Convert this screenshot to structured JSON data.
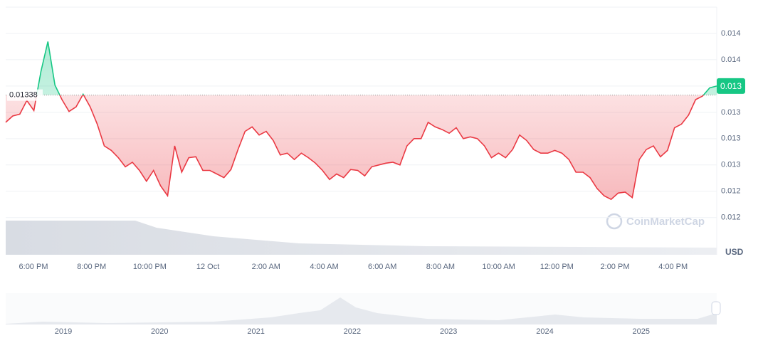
{
  "chart_data": {
    "type": "line",
    "currency": "USD",
    "watermark": "CoinMarketCap",
    "baseline": 0.01338,
    "baseline_label": "0.01338",
    "last_value_label": "0.013",
    "up_color": "#16c784",
    "down_color": "#ea3943",
    "ylim": [
      0.01162,
      0.01435
    ],
    "yticks": [
      {
        "value": 0.01406,
        "label": "0.014"
      },
      {
        "value": 0.01377,
        "label": "0.014"
      },
      {
        "value": 0.01348,
        "label": "0.013"
      },
      {
        "value": 0.01319,
        "label": "0.013"
      },
      {
        "value": 0.0129,
        "label": "0.013"
      },
      {
        "value": 0.01261,
        "label": "0.013"
      },
      {
        "value": 0.01232,
        "label": "0.012"
      },
      {
        "value": 0.01203,
        "label": "0.012"
      }
    ],
    "time_labels": [
      "6:00 PM",
      "8:00 PM",
      "10:00 PM",
      "12 Oct",
      "2:00 AM",
      "4:00 AM",
      "6:00 AM",
      "8:00 AM",
      "10:00 AM",
      "12:00 PM",
      "2:00 PM",
      "4:00 PM"
    ],
    "navigator_labels": [
      "2019",
      "2020",
      "2021",
      "2022",
      "2023",
      "2024",
      "2025"
    ],
    "values": [
      0.01308,
      0.01315,
      0.01317,
      0.01332,
      0.01321,
      0.01364,
      0.01397,
      0.01349,
      0.01333,
      0.0132,
      0.01325,
      0.01339,
      0.01325,
      0.01306,
      0.01282,
      0.01277,
      0.01269,
      0.01259,
      0.01264,
      0.01255,
      0.01243,
      0.01255,
      0.01238,
      0.01227,
      0.01282,
      0.01253,
      0.01269,
      0.0127,
      0.01255,
      0.01255,
      0.01251,
      0.01247,
      0.01256,
      0.01278,
      0.01298,
      0.01303,
      0.01294,
      0.01298,
      0.01288,
      0.01272,
      0.01274,
      0.01267,
      0.01274,
      0.01269,
      0.01263,
      0.01255,
      0.01245,
      0.01251,
      0.01247,
      0.01256,
      0.01255,
      0.01249,
      0.01259,
      0.01261,
      0.01263,
      0.01264,
      0.01261,
      0.01282,
      0.0129,
      0.0129,
      0.01308,
      0.01303,
      0.013,
      0.01296,
      0.01302,
      0.0129,
      0.01292,
      0.0129,
      0.01282,
      0.01269,
      0.01274,
      0.01269,
      0.01278,
      0.01294,
      0.01288,
      0.01278,
      0.01274,
      0.01274,
      0.01277,
      0.01274,
      0.01267,
      0.01253,
      0.01253,
      0.01247,
      0.01235,
      0.01227,
      0.01223,
      0.0123,
      0.01231,
      0.01225,
      0.01267,
      0.01278,
      0.01282,
      0.0127,
      0.01277,
      0.01302,
      0.01306,
      0.01316,
      0.01333,
      0.01337,
      0.01346,
      0.01348
    ]
  }
}
